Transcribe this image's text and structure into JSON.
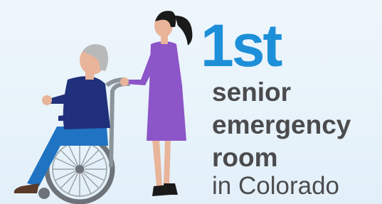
{
  "headline": {
    "rank": "1st",
    "lines": [
      "senior",
      "emergency",
      "room"
    ],
    "location": "in Colorado"
  }
}
